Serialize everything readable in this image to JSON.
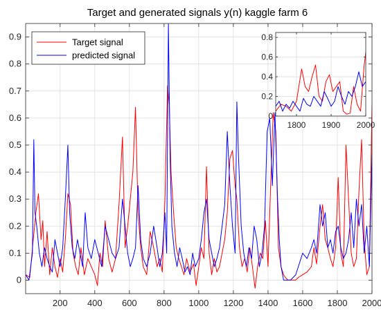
{
  "chart_data": [
    {
      "type": "line",
      "title": "Target and generated signals y(n) kaggle farm 6",
      "xlabel": "",
      "ylabel": "",
      "xlim": [
        1,
        2000
      ],
      "ylim": [
        -0.05,
        0.95
      ],
      "xticks": [
        200,
        400,
        600,
        800,
        1000,
        1200,
        1400,
        1600,
        1800,
        2000
      ],
      "yticks": [
        0,
        0.1,
        0.2,
        0.3,
        0.4,
        0.5,
        0.6,
        0.7,
        0.8,
        0.9
      ],
      "xtick_labels": [
        "200",
        "400",
        "600",
        "800",
        "1000",
        "1200",
        "1400",
        "1600",
        "1800",
        "2000"
      ],
      "ytick_labels": [
        "0",
        "0.1",
        "0.2",
        "0.3",
        "0.4",
        "0.5",
        "0.6",
        "0.7",
        "0.8",
        "0.9"
      ],
      "grid": true,
      "legend": {
        "location": "top-left",
        "entries": [
          "Target signal",
          "predicted signal"
        ]
      },
      "series": [
        {
          "name": "Target signal",
          "color": "#ff0000",
          "x": [
            1,
            25,
            45,
            60,
            75,
            90,
            100,
            110,
            125,
            140,
            155,
            170,
            185,
            200,
            215,
            230,
            245,
            260,
            275,
            290,
            305,
            320,
            340,
            360,
            380,
            400,
            415,
            430,
            445,
            460,
            480,
            500,
            520,
            540,
            560,
            575,
            590,
            605,
            620,
            635,
            650,
            665,
            680,
            700,
            720,
            740,
            760,
            775,
            790,
            805,
            820,
            830,
            840,
            855,
            870,
            885,
            900,
            915,
            930,
            950,
            970,
            985,
            1000,
            1015,
            1030,
            1045,
            1060,
            1075,
            1090,
            1105,
            1120,
            1135,
            1150,
            1165,
            1180,
            1195,
            1210,
            1220,
            1235,
            1250,
            1265,
            1280,
            1295,
            1310,
            1325,
            1340,
            1355,
            1370,
            1385,
            1400,
            1415,
            1430,
            1445,
            1460,
            1475,
            1490,
            1500,
            1515,
            1530,
            1545,
            1560,
            1575,
            1600,
            1625,
            1650,
            1665,
            1680,
            1700,
            1715,
            1730,
            1745,
            1760,
            1775,
            1790,
            1805,
            1820,
            1835,
            1850,
            1865,
            1880,
            1895,
            1910,
            1925,
            1940,
            1955,
            1970,
            1985,
            2000
          ],
          "y": [
            0.02,
            0.01,
            0.15,
            0.25,
            0.32,
            0.15,
            0.22,
            0.05,
            0.18,
            0.02,
            0.12,
            0.05,
            0.01,
            0.08,
            0.03,
            0.15,
            0.32,
            0.28,
            0.1,
            0.05,
            0.02,
            0.12,
            0.02,
            0.08,
            0.05,
            0.02,
            -0.02,
            0.1,
            0.05,
            0.22,
            0.08,
            0.03,
            0.08,
            0.28,
            0.53,
            0.12,
            0.2,
            0.3,
            0.4,
            0.64,
            0.25,
            0.12,
            0.05,
            0.02,
            0.18,
            0.12,
            0.05,
            0.08,
            0.03,
            0.3,
            0.72,
            0.65,
            0.4,
            0.25,
            0.12,
            0.08,
            0.05,
            0.02,
            0.08,
            0.03,
            0.06,
            -0.02,
            0.05,
            0.12,
            0.08,
            0.42,
            0.1,
            0.02,
            0.08,
            0.03,
            0.05,
            0.1,
            0.15,
            0.25,
            0.45,
            0.48,
            0.35,
            0.3,
            0.12,
            0.05,
            0.08,
            0.03,
            0.12,
            0.05,
            -0.03,
            0.05,
            0.1,
            0.08,
            0.22,
            0.05,
            0.35,
            0.62,
            0.55,
            0.12,
            0.05,
            0.02,
            0.01,
            0.0,
            0.0,
            0.0,
            0.0,
            0.01,
            0.02,
            0.03,
            0.05,
            0.12,
            0.06,
            0.2,
            0.28,
            0.15,
            0.12,
            0.08,
            0.05,
            0.12,
            0.38,
            0.1,
            0.05,
            0.5,
            0.3,
            0.1,
            0.05,
            0.08,
            0.33,
            0.52,
            0.15,
            0.02,
            0.05,
            0.65
          ]
        },
        {
          "name": "predicted signal",
          "color": "#0000ff",
          "x": [
            1,
            20,
            40,
            48,
            55,
            65,
            80,
            95,
            110,
            125,
            140,
            155,
            170,
            185,
            200,
            215,
            230,
            245,
            255,
            270,
            285,
            300,
            315,
            330,
            345,
            360,
            380,
            400,
            420,
            440,
            460,
            480,
            500,
            520,
            540,
            560,
            575,
            590,
            605,
            620,
            635,
            650,
            665,
            680,
            700,
            720,
            740,
            760,
            775,
            790,
            805,
            815,
            825,
            835,
            845,
            860,
            875,
            890,
            905,
            920,
            935,
            950,
            965,
            980,
            1000,
            1015,
            1030,
            1045,
            1060,
            1075,
            1090,
            1105,
            1120,
            1135,
            1150,
            1165,
            1180,
            1195,
            1210,
            1220,
            1230,
            1245,
            1260,
            1275,
            1290,
            1305,
            1320,
            1335,
            1350,
            1365,
            1380,
            1395,
            1410,
            1425,
            1440,
            1455,
            1465,
            1475,
            1490,
            1500,
            1515,
            1530,
            1545,
            1560,
            1575,
            1600,
            1625,
            1650,
            1665,
            1680,
            1700,
            1715,
            1730,
            1745,
            1760,
            1775,
            1790,
            1805,
            1820,
            1835,
            1850,
            1865,
            1880,
            1895,
            1910,
            1925,
            1940,
            1955,
            1970,
            1985,
            2000
          ],
          "y": [
            0.02,
            0.0,
            0.1,
            0.52,
            0.25,
            0.2,
            0.1,
            0.05,
            0.12,
            0.08,
            0.05,
            0.03,
            0.15,
            0.1,
            0.05,
            0.12,
            0.3,
            0.5,
            0.25,
            0.12,
            0.08,
            0.15,
            0.1,
            0.05,
            0.25,
            0.12,
            0.08,
            0.15,
            0.1,
            0.05,
            0.2,
            0.15,
            0.1,
            0.08,
            0.12,
            0.3,
            0.2,
            0.1,
            0.05,
            0.08,
            0.12,
            0.35,
            0.15,
            0.08,
            0.05,
            0.1,
            0.2,
            0.12,
            0.05,
            0.1,
            0.25,
            0.1,
            0.95,
            0.45,
            0.2,
            0.1,
            0.05,
            0.12,
            0.08,
            0.03,
            0.05,
            0.02,
            0.1,
            0.05,
            0.08,
            0.15,
            0.25,
            0.3,
            0.15,
            0.1,
            0.05,
            0.08,
            0.12,
            0.2,
            0.28,
            0.55,
            0.35,
            0.2,
            0.1,
            0.66,
            0.45,
            0.2,
            0.1,
            0.05,
            0.12,
            0.08,
            0.2,
            0.15,
            0.05,
            0.1,
            0.2,
            0.55,
            0.6,
            0.35,
            0.62,
            0.3,
            0.15,
            0.05,
            0.0,
            0.0,
            0.0,
            0.0,
            0.01,
            0.02,
            0.05,
            0.1,
            0.08,
            0.12,
            0.15,
            0.1,
            0.28,
            0.2,
            0.25,
            0.12,
            0.15,
            0.1,
            0.18,
            0.2,
            0.12,
            0.08,
            0.1,
            0.15,
            0.25,
            0.12,
            0.3,
            0.2,
            0.28,
            0.1,
            0.2,
            0.05,
            0.47
          ]
        }
      ]
    },
    {
      "type": "line",
      "title": "",
      "xlabel": "",
      "ylabel": "",
      "xlim": [
        1740,
        2000
      ],
      "ylim": [
        0,
        0.85
      ],
      "xticks": [
        1800,
        1900,
        2000
      ],
      "yticks": [
        0,
        0.2,
        0.4,
        0.6,
        0.8
      ],
      "xtick_labels": [
        "1800",
        "1900",
        "2000"
      ],
      "ytick_labels": [
        "0",
        "0.2",
        "0.4",
        "0.6",
        "0.8"
      ],
      "grid": true,
      "series": [
        {
          "name": "Target signal",
          "color": "#ff0000",
          "x": [
            1740,
            1755,
            1770,
            1785,
            1800,
            1815,
            1825,
            1835,
            1845,
            1855,
            1865,
            1875,
            1885,
            1895,
            1905,
            1915,
            1925,
            1935,
            1945,
            1955,
            1965,
            1975,
            1985,
            1995,
            2000
          ],
          "y": [
            0.05,
            0.12,
            0.1,
            0.05,
            0.15,
            0.48,
            0.3,
            0.25,
            0.4,
            0.52,
            0.2,
            0.15,
            0.35,
            0.42,
            0.25,
            0.3,
            0.35,
            0.05,
            0.02,
            0.03,
            0.3,
            0.12,
            0.05,
            0.5,
            0.65
          ]
        },
        {
          "name": "predicted signal",
          "color": "#0000ff",
          "x": [
            1740,
            1750,
            1760,
            1770,
            1780,
            1790,
            1800,
            1810,
            1820,
            1830,
            1840,
            1850,
            1860,
            1870,
            1880,
            1890,
            1900,
            1910,
            1920,
            1930,
            1940,
            1950,
            1960,
            1970,
            1980,
            1990,
            2000
          ],
          "y": [
            0.1,
            0.15,
            0.05,
            0.12,
            0.08,
            0.15,
            0.1,
            0.05,
            0.18,
            0.12,
            0.1,
            0.2,
            0.15,
            0.1,
            0.25,
            0.18,
            0.1,
            0.15,
            0.3,
            0.2,
            0.12,
            0.25,
            0.2,
            0.3,
            0.45,
            0.3,
            0.35
          ]
        }
      ]
    }
  ]
}
